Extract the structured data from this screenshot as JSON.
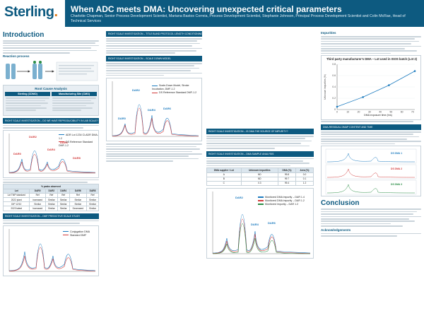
{
  "header": {
    "logo_text": "Sterling",
    "title": "When ADC meets DMA: Uncovering unexpected critical parameters",
    "authors": "Charlotte Chapman, Senior Process Development Scientist, Mariana Bastos Correia, Process Development Scientist, Stephanie Johnson, Principal Process Development Scientist and Colin McRae, Head of Technical Services"
  },
  "col1": {
    "intro_title": "Introduction",
    "mechanism_label": "Reaction process",
    "rca_title": "Root Cause Analysis",
    "rca_left_title": "Sterling (CDMO)",
    "rca_right_title": "Manufacturing Site (CMO)",
    "section_bar": "RIGHT SCALE INVESTIGATION – DO WE HAVE REPRODUCIBILITY IN LAB SCALE?",
    "chart_title": "",
    "chart_legend_1": "ADR Lot 1234 Cl-ADR DMA-1.2",
    "chart_legend_2": "DS Reference Standard DMF-1.2",
    "peaks": [
      "DAR2",
      "DAR4",
      "DAR6",
      "DAR8",
      "DAR0"
    ],
    "table_title": "% peaks observed",
    "table_headers": [
      "Lot",
      "DAR0",
      "DAR2",
      "DAR4",
      "DAR6",
      "DAR8"
    ],
    "table_rows": [
      [
        "Lot TMP standard",
        "Ref",
        "Ref",
        "Ref",
        "Ref",
        "Ref"
      ],
      [
        "2022 plant",
        "increased",
        "Similar",
        "Similar",
        "Similar",
        "Similar"
      ],
      [
        "DIP 12/10",
        "Similar",
        "Similar",
        "Similar",
        "Similar",
        "Similar"
      ],
      [
        "2023 latest",
        "Increased",
        "Similar",
        "Similar",
        "Decreased",
        "Similar"
      ]
    ],
    "section_bar_2": "RIGHT SCALE INVESTIGATION – DMF PREDICTIVE SCALE STUDY",
    "chart2_legend": [
      "Conjugation DMA",
      "Standard DMF"
    ]
  },
  "col2": {
    "bar1": "RIGHT SCALE INVESTIGATION – TITLE BLIND PROTOCOL LENGTH CONDITIONING",
    "bar2": "RIGHT SCALE INVESTIGATION – SCALE DOWN MODEL",
    "chart_legend": [
      "Scale-Down Model, Stroke Incubation, DMF-1.2",
      "DS Reference Standard DMF-1.2"
    ],
    "peaks": [
      "DAR2",
      "DAR4",
      "DAR6",
      "DAR0"
    ]
  },
  "col3": {
    "bar1": "RIGHT SCALE INVESTIGATION – IS DMA THE SOURCE OF IMPURITY?",
    "bar2": "RIGHT SCALE INVESTIGATION – DMA SAMPLE ANALYSIS",
    "table_headers": [
      "DMA supplier / Lot",
      "Unknown impurities",
      "DMA (%)",
      "Area (%)"
    ],
    "table_rows": [
      [
        "A",
        "ND",
        "99.8",
        "0.0"
      ],
      [
        "B",
        "ND",
        "99.7",
        "0.1"
      ],
      [
        "C",
        "0.3",
        "99.4",
        "1.2"
      ]
    ],
    "chart_legend": [
      "Monitored DMA impurity – DAR 1.4",
      "Monitored DMA impurity – DAR 1.2",
      "Monitored impurity – DAR 1.2"
    ],
    "peaks": [
      "DAR2",
      "DAR4",
      "DAR6"
    ]
  },
  "col4": {
    "bar1": "Impurities",
    "chart_title": "Third party manufacturer's DMA – Lot used in ISOS batch (Lot 2)",
    "x_label": "DMA exposure time (hrs)",
    "x_ticks": [
      "0",
      "10",
      "20",
      "30",
      "40",
      "50",
      "60",
      "70"
    ],
    "y_label": "Unknown impurities (%)",
    "y_ticks": [
      "0",
      "0.2",
      "0.4",
      "0.6",
      "0.8"
    ],
    "bar2": "DMA-RESIDUAL DMAP CONTENT AND TIME",
    "conclusion_title": "Conclusion",
    "ack_title": "Acknowledgements",
    "spectra_legend": [
      "DS DMA 1",
      "DS DMA 2",
      "DS DMA 3"
    ]
  },
  "chart_data": {
    "type": "line",
    "title": "Third party manufacturer's DMA – Lot used in ISOS batch (Lot 2)",
    "xlabel": "DMA exposure time (hrs)",
    "ylabel": "Unknown impurities (%)",
    "x": [
      0,
      24,
      48,
      72
    ],
    "series": [
      {
        "name": "",
        "values": [
          0.05,
          0.22,
          0.43,
          0.68
        ]
      }
    ],
    "xlim": [
      0,
      72
    ],
    "ylim": [
      0,
      0.8
    ]
  }
}
